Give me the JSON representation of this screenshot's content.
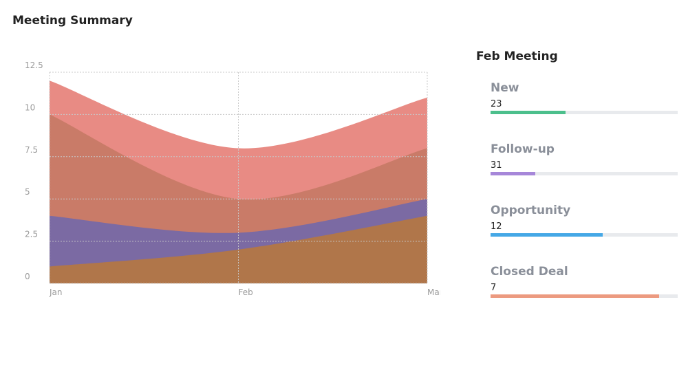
{
  "title": "Meeting Summary",
  "chart_data": {
    "type": "area",
    "categories": [
      "Jan",
      "Feb",
      "Mar"
    ],
    "series": [
      {
        "color": "#e88b84",
        "values": [
          12,
          8,
          11
        ]
      },
      {
        "color": "#c97b68",
        "values": [
          10,
          5,
          8
        ]
      },
      {
        "color": "#7b6aa3",
        "values": [
          4,
          3,
          5
        ]
      },
      {
        "color": "#b0764a",
        "values": [
          1,
          2,
          4
        ]
      }
    ],
    "ylim": [
      0,
      12.5
    ],
    "yticks": [
      0,
      2.5,
      5,
      7.5,
      10,
      12.5
    ],
    "grid": true
  },
  "panel": {
    "title": "Feb Meeting",
    "items": [
      {
        "label": "New",
        "value": 23,
        "progress": 40,
        "color": "#4cbf8c"
      },
      {
        "label": "Follow-up",
        "value": 31,
        "progress": 24,
        "color": "#a687d9"
      },
      {
        "label": "Opportunity",
        "value": 12,
        "progress": 60,
        "color": "#45a8e6"
      },
      {
        "label": "Closed Deal",
        "value": 7,
        "progress": 90,
        "color": "#ec9a80"
      }
    ]
  }
}
